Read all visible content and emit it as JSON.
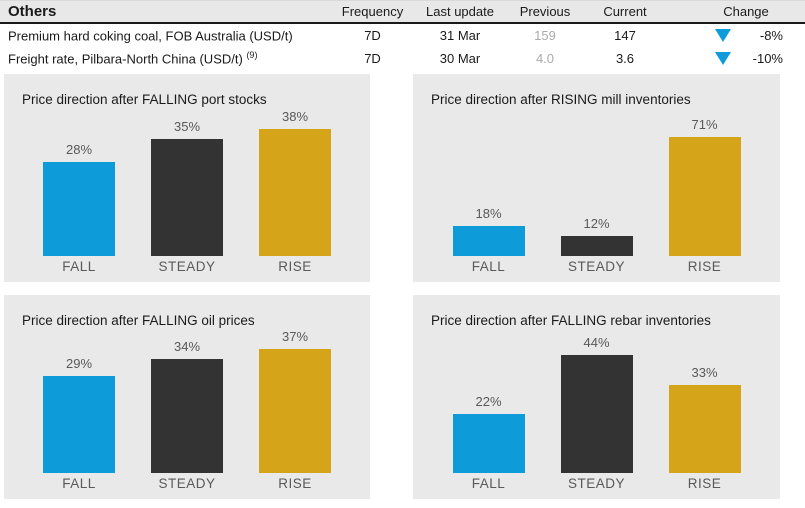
{
  "colors": {
    "header_bg": "#e8e8e8",
    "panel_bg": "#e9e9e9",
    "header_underline": "#1a1a1a",
    "bar_blue": "#0d9cd9",
    "bar_dark": "#333333",
    "bar_gold": "#d5a419",
    "chart_label_gray": "#595959",
    "previous_value_gray": "#ababab",
    "change_down": "#0d9cd9"
  },
  "table": {
    "title": "Others",
    "columns": [
      "Frequency",
      "Last update",
      "Previous",
      "Current",
      "Change"
    ],
    "rows": [
      {
        "label": "Premium hard coking coal, FOB Australia (USD/t)",
        "superscript": "",
        "frequency": "7D",
        "last_update": "31 Mar",
        "previous": "159",
        "current": "147",
        "change": "-8%",
        "change_direction": "down"
      },
      {
        "label": "Freight rate, Pilbara-North China (USD/t)",
        "superscript": "(9)",
        "frequency": "7D",
        "last_update": "30 Mar",
        "previous": "4.0",
        "current": "3.6",
        "change": "-10%",
        "change_direction": "down"
      }
    ]
  },
  "chart_data": [
    {
      "type": "bar",
      "title": "Price direction after FALLING port stocks",
      "categories": [
        "FALL",
        "STEADY",
        "RISE"
      ],
      "values": [
        28,
        35,
        38
      ],
      "unit": "%",
      "ylim": [
        0,
        40
      ],
      "grid": false,
      "legend": false,
      "bar_colors": [
        "#0d9cd9",
        "#333333",
        "#d5a419"
      ]
    },
    {
      "type": "bar",
      "title": "Price direction after RISING mill inventories",
      "categories": [
        "FALL",
        "STEADY",
        "RISE"
      ],
      "values": [
        18,
        12,
        71
      ],
      "unit": "%",
      "ylim": [
        0,
        80
      ],
      "grid": false,
      "legend": false,
      "bar_colors": [
        "#0d9cd9",
        "#333333",
        "#d5a419"
      ]
    },
    {
      "type": "bar",
      "title": "Price direction after FALLING oil prices",
      "categories": [
        "FALL",
        "STEADY",
        "RISE"
      ],
      "values": [
        29,
        34,
        37
      ],
      "unit": "%",
      "ylim": [
        0,
        40
      ],
      "grid": false,
      "legend": false,
      "bar_colors": [
        "#0d9cd9",
        "#333333",
        "#d5a419"
      ]
    },
    {
      "type": "bar",
      "title": "Price direction after FALLING rebar inventories",
      "categories": [
        "FALL",
        "STEADY",
        "RISE"
      ],
      "values": [
        22,
        44,
        33
      ],
      "unit": "%",
      "ylim": [
        0,
        50
      ],
      "grid": false,
      "legend": false,
      "bar_colors": [
        "#0d9cd9",
        "#333333",
        "#d5a419"
      ]
    }
  ]
}
